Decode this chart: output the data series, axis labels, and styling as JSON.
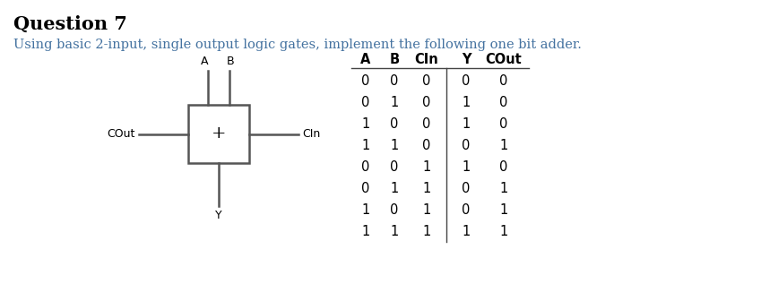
{
  "title": "Question 7",
  "subtitle": "Using basic 2-input, single output logic gates, implement the following one bit adder.",
  "title_color": "#000000",
  "subtitle_color": "#4472a0",
  "title_fontsize": 15,
  "subtitle_fontsize": 10.5,
  "bg_color": "#ffffff",
  "table_headers": [
    "A",
    "B",
    "CIn",
    "Y",
    "COut"
  ],
  "table_data": [
    [
      0,
      0,
      0,
      0,
      0
    ],
    [
      0,
      1,
      0,
      1,
      0
    ],
    [
      1,
      0,
      0,
      1,
      0
    ],
    [
      1,
      1,
      0,
      0,
      1
    ],
    [
      0,
      0,
      1,
      1,
      0
    ],
    [
      0,
      1,
      1,
      0,
      1
    ],
    [
      1,
      0,
      1,
      0,
      1
    ],
    [
      1,
      1,
      1,
      1,
      1
    ]
  ],
  "gate_label": "+",
  "gate_label_fontsize": 14,
  "input_A_label": "A",
  "input_B_label": "B",
  "left_label": "COut",
  "right_label": "CIn",
  "bottom_label": "Y",
  "line_color": "#555555",
  "text_color_gate": "#000000",
  "table_text_color": "#000000"
}
